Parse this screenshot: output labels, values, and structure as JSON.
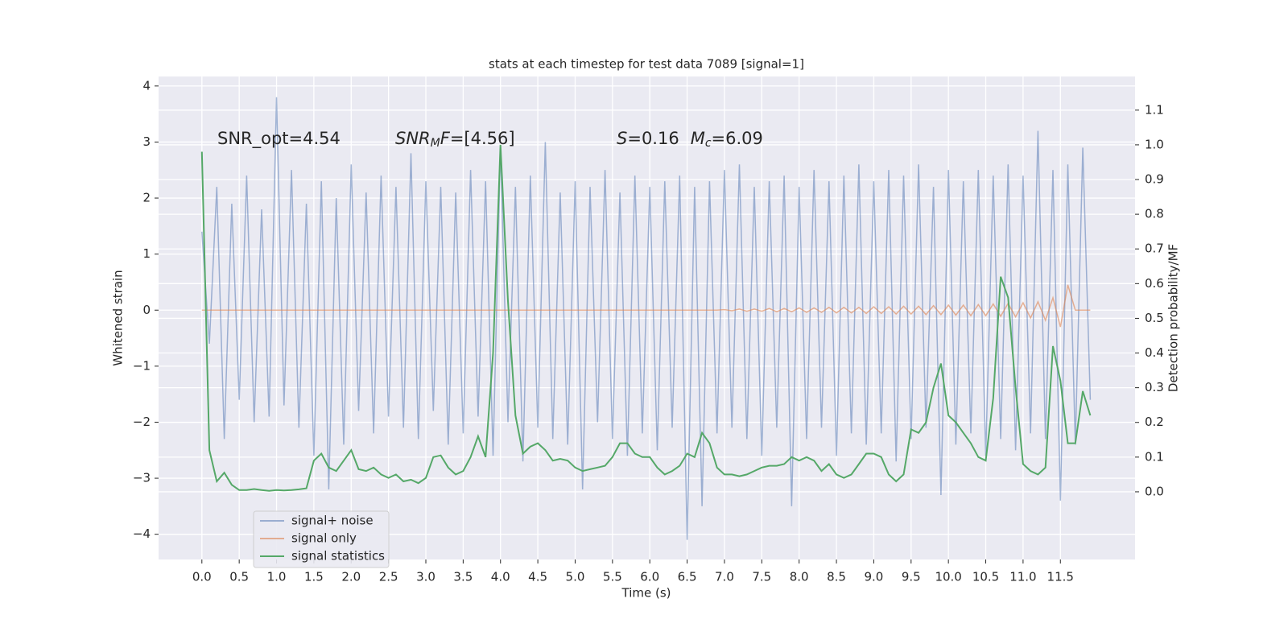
{
  "chart_data": {
    "type": "line",
    "title": "stats at each timestep for test data 7089 [signal=1]",
    "x_label": "Time (s)",
    "y_label": "Whitened strain",
    "y2_label": "Detection probability/MF",
    "annotations": [
      [
        "SNR_opt=4.54"
      ],
      [
        "SNR",
        "M",
        "F",
        "=[4.56]"
      ],
      [
        "S",
        "=0.16",
        "M",
        "c",
        "=6.09"
      ]
    ],
    "grid": true,
    "legend": "lower left",
    "xlim": [
      -0.58,
      12.5
    ],
    "ylim": [
      -4.45,
      4.17
    ],
    "y2lim": [
      -0.195,
      1.197
    ],
    "xticks": [
      {
        "value": 0,
        "label": "0.0"
      },
      0.5,
      {
        "value": 1,
        "label": "1.0"
      },
      1.5,
      {
        "value": 2,
        "label": "2.0"
      },
      2.5,
      {
        "value": 3,
        "label": "3.0"
      },
      3.5,
      {
        "value": 4,
        "label": "4.0"
      },
      4.5,
      {
        "value": 5,
        "label": "5.0"
      },
      5.5,
      {
        "value": 6,
        "label": "6.0"
      },
      6.5,
      {
        "value": 7,
        "label": "7.0"
      },
      7.5,
      {
        "value": 8,
        "label": "8.0"
      },
      8.5,
      {
        "value": 9,
        "label": "9.0"
      },
      9.5,
      {
        "value": 10,
        "label": "10.0"
      },
      10.5,
      {
        "value": 11,
        "label": "11.0"
      },
      11.5
    ],
    "yticks": [
      {
        "value": -4,
        "label": "−4"
      },
      {
        "value": -3,
        "label": "−3"
      },
      {
        "value": -2,
        "label": "−2"
      },
      {
        "value": -1,
        "label": "−1"
      },
      0,
      1,
      2,
      3,
      4
    ],
    "y2ticks": [
      {
        "value": 0,
        "label": "0.0"
      },
      0.1,
      0.2,
      0.3,
      0.4,
      0.5,
      0.6,
      0.7,
      0.8,
      0.9,
      {
        "value": 1,
        "label": "1.0"
      },
      1.1
    ],
    "x": [
      0,
      0.1,
      0.2,
      0.3,
      0.4,
      0.5,
      0.6,
      0.7,
      0.8,
      0.9,
      1,
      1.1,
      1.2,
      1.3,
      1.4,
      1.5,
      1.6,
      1.7,
      1.8,
      1.9,
      2,
      2.1,
      2.2,
      2.3,
      2.4,
      2.5,
      2.6,
      2.7,
      2.8,
      2.9,
      3,
      3.1,
      3.2,
      3.3,
      3.4,
      3.5,
      3.6,
      3.7,
      3.8,
      3.9,
      4,
      4.1,
      4.2,
      4.3,
      4.4,
      4.5,
      4.6,
      4.7,
      4.8,
      4.9,
      5,
      5.1,
      5.2,
      5.3,
      5.4,
      5.5,
      5.6,
      5.7,
      5.8,
      5.9,
      6,
      6.1,
      6.2,
      6.3,
      6.4,
      6.5,
      6.6,
      6.7,
      6.8,
      6.9,
      7,
      7.1,
      7.2,
      7.3,
      7.4,
      7.5,
      7.6,
      7.7,
      7.8,
      7.9,
      8,
      8.1,
      8.2,
      8.3,
      8.4,
      8.5,
      8.6,
      8.7,
      8.8,
      8.9,
      9,
      9.1,
      9.2,
      9.3,
      9.4,
      9.5,
      9.6,
      9.7,
      9.8,
      9.9,
      10,
      10.1,
      10.2,
      10.3,
      10.4,
      10.5,
      10.6,
      10.7,
      10.8,
      10.9,
      11,
      11.1,
      11.2,
      11.3,
      11.4,
      11.5,
      11.6,
      11.7,
      11.8,
      11.9
    ],
    "series": [
      {
        "name": "signal+ noise",
        "color": "#4c72b0",
        "values": [
          1.4,
          -0.6,
          2.2,
          -2.3,
          1.9,
          -1.6,
          2.4,
          -2.0,
          1.8,
          -1.9,
          3.8,
          -1.7,
          2.5,
          -2.1,
          1.9,
          -2.6,
          2.3,
          -3.2,
          2.0,
          -2.4,
          2.6,
          -1.8,
          2.1,
          -2.2,
          2.4,
          -1.9,
          2.2,
          -2.1,
          2.8,
          -2.3,
          2.3,
          -1.8,
          2.2,
          -2.4,
          2.1,
          -2.2,
          2.5,
          -1.9,
          2.3,
          -2.6,
          2.9,
          -2.0,
          2.2,
          -2.7,
          2.4,
          -2.1,
          3.0,
          -2.3,
          2.1,
          -2.4,
          2.3,
          -3.2,
          2.2,
          -2.0,
          2.5,
          -2.3,
          2.1,
          -2.6,
          2.4,
          -2.2,
          2.2,
          -2.5,
          2.3,
          -2.1,
          2.4,
          -4.1,
          2.2,
          -3.5,
          2.3,
          -2.2,
          2.5,
          -2.1,
          2.6,
          -2.3,
          2.2,
          -2.6,
          2.3,
          -2.1,
          2.4,
          -3.5,
          2.2,
          -2.3,
          2.5,
          -2.1,
          2.3,
          -2.6,
          2.4,
          -2.2,
          2.6,
          -2.4,
          2.3,
          -2.2,
          2.5,
          -2.7,
          2.4,
          -2.3,
          2.6,
          -2.1,
          2.2,
          -3.3,
          2.5,
          -2.4,
          2.3,
          -2.2,
          2.5,
          -2.6,
          2.4,
          -2.3,
          2.6,
          -2.5,
          2.4,
          -2.2,
          3.2,
          -2.3,
          2.5,
          -3.4,
          2.6,
          -2.4,
          2.9,
          -1.6
        ]
      },
      {
        "name": "signal only",
        "color": "#dd8452",
        "values": [
          0,
          0,
          0,
          0,
          0,
          0,
          0,
          0,
          0,
          0,
          0,
          0,
          0,
          0,
          0,
          0,
          0,
          0,
          0,
          0,
          0,
          0,
          0,
          0,
          0,
          0,
          0,
          0,
          0,
          0,
          0,
          0,
          0,
          0,
          0,
          0,
          0,
          0,
          0,
          0,
          0,
          0,
          0,
          0,
          0,
          0,
          0,
          0,
          0,
          0,
          0,
          0,
          0,
          0,
          0,
          0,
          0,
          0,
          0,
          0,
          0,
          0,
          0,
          0,
          0,
          0,
          0,
          0,
          0,
          0,
          0.01,
          -0.01,
          0.02,
          -0.02,
          0.02,
          -0.02,
          0.03,
          -0.03,
          0.03,
          -0.03,
          0.04,
          -0.04,
          0.04,
          -0.04,
          0.05,
          -0.05,
          0.05,
          -0.05,
          0.05,
          -0.06,
          0.06,
          -0.06,
          0.06,
          -0.07,
          0.07,
          -0.07,
          0.07,
          -0.08,
          0.08,
          -0.08,
          0.09,
          -0.09,
          0.09,
          -0.1,
          0.1,
          -0.1,
          0.11,
          -0.11,
          0.12,
          -0.12,
          0.13,
          -0.14,
          0.15,
          -0.18,
          0.22,
          -0.3,
          0.45,
          0,
          0,
          0
        ]
      },
      {
        "name": "signal statistics",
        "color": "#55a868",
        "axis": "y2",
        "values": [
          0.98,
          0.12,
          0.03,
          0.055,
          0.02,
          0.005,
          0.005,
          0.008,
          0.005,
          0.003,
          0.005,
          0.004,
          0.005,
          0.007,
          0.01,
          0.09,
          0.11,
          0.07,
          0.06,
          0.09,
          0.12,
          0.065,
          0.06,
          0.07,
          0.05,
          0.04,
          0.05,
          0.03,
          0.035,
          0.025,
          0.04,
          0.1,
          0.105,
          0.07,
          0.05,
          0.06,
          0.1,
          0.16,
          0.1,
          0.4,
          1.0,
          0.55,
          0.22,
          0.11,
          0.13,
          0.14,
          0.12,
          0.09,
          0.095,
          0.09,
          0.07,
          0.06,
          0.065,
          0.07,
          0.075,
          0.1,
          0.14,
          0.14,
          0.11,
          0.1,
          0.1,
          0.07,
          0.05,
          0.06,
          0.075,
          0.11,
          0.1,
          0.17,
          0.14,
          0.07,
          0.05,
          0.05,
          0.045,
          0.05,
          0.06,
          0.07,
          0.075,
          0.075,
          0.08,
          0.1,
          0.09,
          0.1,
          0.09,
          0.06,
          0.08,
          0.05,
          0.04,
          0.05,
          0.08,
          0.11,
          0.11,
          0.1,
          0.05,
          0.03,
          0.05,
          0.18,
          0.17,
          0.2,
          0.3,
          0.37,
          0.22,
          0.2,
          0.17,
          0.14,
          0.1,
          0.09,
          0.27,
          0.62,
          0.56,
          0.3,
          0.08,
          0.06,
          0.05,
          0.07,
          0.42,
          0.32,
          0.14,
          0.14,
          0.29,
          0.22
        ]
      }
    ]
  }
}
